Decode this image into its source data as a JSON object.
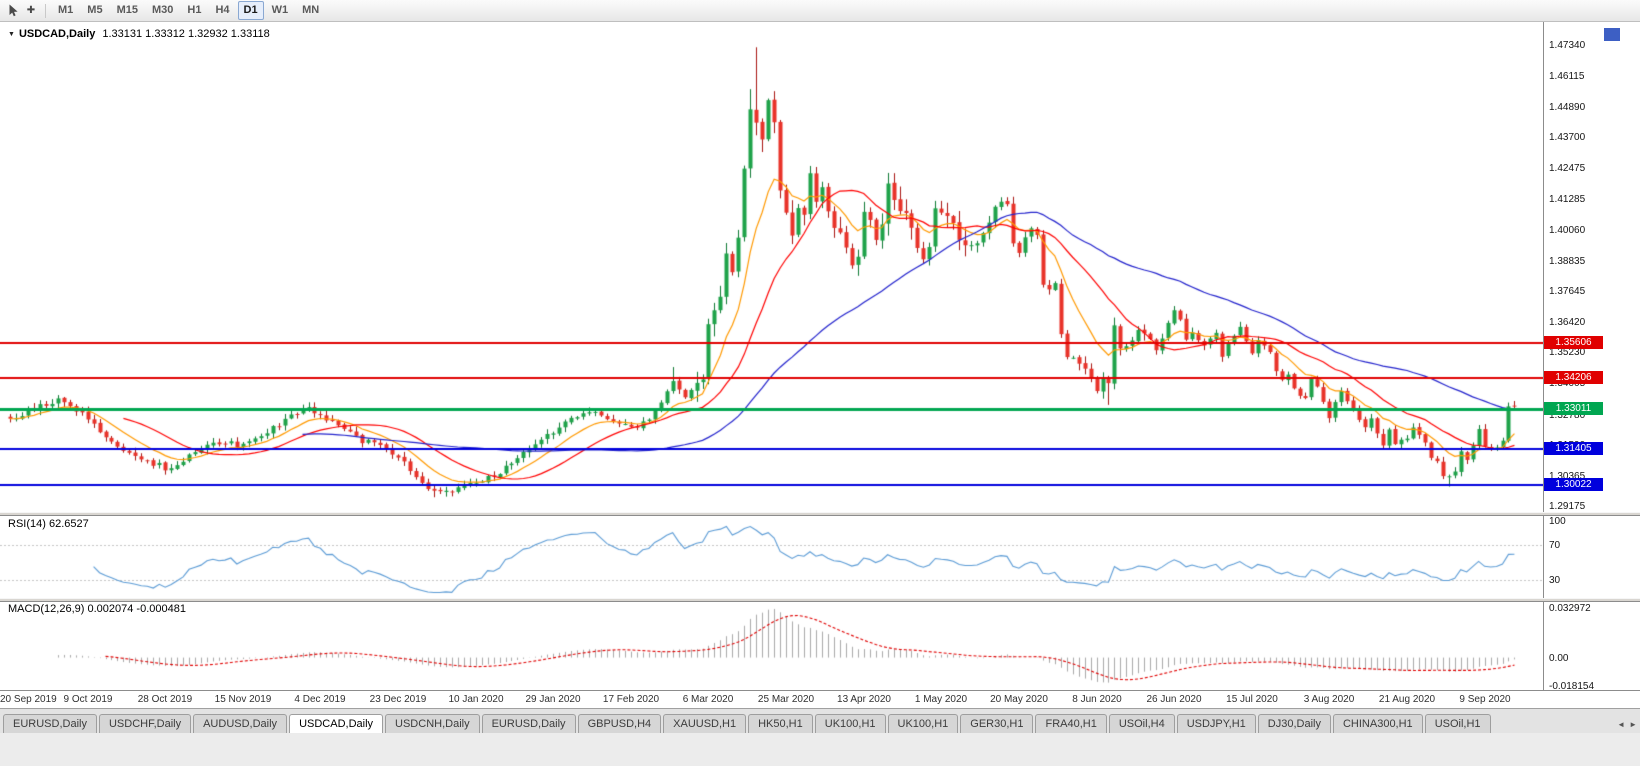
{
  "toolbar": {
    "crosshair_glyph": "✚",
    "timeframes": [
      "M1",
      "M5",
      "M15",
      "M30",
      "H1",
      "H4",
      "D1",
      "W1",
      "MN"
    ],
    "active_timeframe": "D1"
  },
  "chart": {
    "caret_glyph": "▼",
    "symbol_label": "USDCAD,Daily",
    "ohlc": "1.33131 1.33312 1.32932 1.33118"
  },
  "chart_data": {
    "type": "candlestick",
    "symbol": "USDCAD",
    "timeframe": "Daily",
    "num_candles": 253,
    "candles_per_label": 13,
    "x_labels": [
      "20 Sep 2019",
      "9 Oct 2019",
      "28 Oct 2019",
      "15 Nov 2019",
      "4 Dec 2019",
      "23 Dec 2019",
      "10 Jan 2020",
      "29 Jan 2020",
      "17 Feb 2020",
      "6 Mar 2020",
      "25 Mar 2020",
      "13 Apr 2020",
      "1 May 2020",
      "20 May 2020",
      "8 Jun 2020",
      "26 Jun 2020",
      "15 Jul 2020",
      "3 Aug 2020",
      "21 Aug 2020",
      "9 Sep 2020"
    ],
    "y_axis": {
      "min": 1.29175,
      "max": 1.4734,
      "labels": [
        "1.47340",
        "1.46115",
        "1.44890",
        "1.43700",
        "1.42475",
        "1.41285",
        "1.40060",
        "1.38835",
        "1.37645",
        "1.36420",
        "1.35230",
        "1.34005",
        "1.32780",
        "1.31590",
        "1.30365",
        "1.29175"
      ]
    },
    "close_waypoints": [
      [
        0,
        1.3265
      ],
      [
        4,
        1.33
      ],
      [
        8,
        1.334
      ],
      [
        11,
        1.33
      ],
      [
        14,
        1.324
      ],
      [
        17,
        1.317
      ],
      [
        20,
        1.313
      ],
      [
        23,
        1.3095
      ],
      [
        27,
        1.306
      ],
      [
        30,
        1.312
      ],
      [
        33,
        1.315
      ],
      [
        36,
        1.317
      ],
      [
        38,
        1.3155
      ],
      [
        41,
        1.319
      ],
      [
        44,
        1.3225
      ],
      [
        47,
        1.327
      ],
      [
        50,
        1.33
      ],
      [
        53,
        1.326
      ],
      [
        56,
        1.3215
      ],
      [
        59,
        1.3175
      ],
      [
        62,
        1.3155
      ],
      [
        64,
        1.313
      ],
      [
        66,
        1.309
      ],
      [
        68,
        1.304
      ],
      [
        70,
        1.299
      ],
      [
        72,
        1.2968
      ],
      [
        74,
        1.2978
      ],
      [
        77,
        1.3
      ],
      [
        80,
        1.303
      ],
      [
        82,
        1.305
      ],
      [
        85,
        1.31
      ],
      [
        87,
        1.314
      ],
      [
        89,
        1.318
      ],
      [
        91,
        1.321
      ],
      [
        94,
        1.3255
      ],
      [
        97,
        1.329
      ],
      [
        100,
        1.327
      ],
      [
        102,
        1.325
      ],
      [
        105,
        1.3225
      ],
      [
        107,
        1.3255
      ],
      [
        109,
        1.333
      ],
      [
        111,
        1.341
      ],
      [
        113,
        1.335
      ],
      [
        115,
        1.339
      ],
      [
        116,
        1.342
      ],
      [
        117,
        1.366
      ],
      [
        118,
        1.37
      ],
      [
        119,
        1.373
      ],
      [
        120,
        1.392
      ],
      [
        121,
        1.382
      ],
      [
        122,
        1.399
      ],
      [
        123,
        1.424
      ],
      [
        124,
        1.45
      ],
      [
        125,
        1.445
      ],
      [
        126,
        1.435
      ],
      [
        127,
        1.449
      ],
      [
        128,
        1.442
      ],
      [
        129,
        1.419
      ],
      [
        130,
        1.406
      ],
      [
        131,
        1.399
      ],
      [
        132,
        1.408
      ],
      [
        133,
        1.405
      ],
      [
        134,
        1.42
      ],
      [
        135,
        1.413
      ],
      [
        136,
        1.418
      ],
      [
        137,
        1.409
      ],
      [
        138,
        1.401
      ],
      [
        140,
        1.396
      ],
      [
        141,
        1.389
      ],
      [
        142,
        1.3895
      ],
      [
        143,
        1.409
      ],
      [
        144,
        1.404
      ],
      [
        145,
        1.399
      ],
      [
        146,
        1.402
      ],
      [
        147,
        1.417
      ],
      [
        148,
        1.414
      ],
      [
        149,
        1.406
      ],
      [
        150,
        1.408
      ],
      [
        151,
        1.401
      ],
      [
        152,
        1.396
      ],
      [
        153,
        1.389
      ],
      [
        154,
        1.394
      ],
      [
        155,
        1.408
      ],
      [
        157,
        1.403
      ],
      [
        159,
        1.398
      ],
      [
        161,
        1.393
      ],
      [
        163,
        1.398
      ],
      [
        165,
        1.409
      ],
      [
        167,
        1.411
      ],
      [
        168,
        1.395
      ],
      [
        169,
        1.393
      ],
      [
        171,
        1.4
      ],
      [
        172,
        1.398
      ],
      [
        173,
        1.379
      ],
      [
        175,
        1.378
      ],
      [
        176,
        1.358
      ],
      [
        177,
        1.352
      ],
      [
        179,
        1.348
      ],
      [
        181,
        1.342
      ],
      [
        182,
        1.338
      ],
      [
        183,
        1.342
      ],
      [
        184,
        1.341
      ],
      [
        185,
        1.362
      ],
      [
        186,
        1.354
      ],
      [
        187,
        1.355
      ],
      [
        189,
        1.36
      ],
      [
        191,
        1.358
      ],
      [
        192,
        1.353
      ],
      [
        194,
        1.364
      ],
      [
        195,
        1.368
      ],
      [
        196,
        1.365
      ],
      [
        197,
        1.358
      ],
      [
        198,
        1.36
      ],
      [
        200,
        1.355
      ],
      [
        202,
        1.361
      ],
      [
        203,
        1.351
      ],
      [
        205,
        1.359
      ],
      [
        206,
        1.362
      ],
      [
        208,
        1.351
      ],
      [
        209,
        1.357
      ],
      [
        211,
        1.353
      ],
      [
        212,
        1.345
      ],
      [
        213,
        1.341
      ],
      [
        214,
        1.343
      ],
      [
        215,
        1.337
      ],
      [
        217,
        1.334
      ],
      [
        218,
        1.342
      ],
      [
        219,
        1.339
      ],
      [
        221,
        1.327
      ],
      [
        223,
        1.338
      ],
      [
        224,
        1.334
      ],
      [
        226,
        1.325
      ],
      [
        227,
        1.322
      ],
      [
        228,
        1.326
      ],
      [
        229,
        1.321
      ],
      [
        230,
        1.316
      ],
      [
        231,
        1.322
      ],
      [
        232,
        1.317
      ],
      [
        234,
        1.318
      ],
      [
        235,
        1.322
      ],
      [
        237,
        1.316
      ],
      [
        238,
        1.31
      ],
      [
        239,
        1.309
      ],
      [
        240,
        1.304
      ],
      [
        241,
        1.3045
      ],
      [
        242,
        1.3055
      ],
      [
        243,
        1.313
      ],
      [
        244,
        1.3105
      ],
      [
        245,
        1.316
      ],
      [
        246,
        1.323
      ],
      [
        247,
        1.316
      ],
      [
        248,
        1.3145
      ],
      [
        249,
        1.315
      ],
      [
        250,
        1.3175
      ],
      [
        251,
        1.331
      ],
      [
        252,
        1.33118
      ]
    ],
    "forced_points": {
      "open": {
        "252": 1.33131
      },
      "close": {
        "250": 1.3175,
        "251": 1.331,
        "252": 1.33118
      },
      "high": {
        "111": 1.3465,
        "124": 1.456,
        "125": 1.4725,
        "147": 1.423,
        "185": 1.366,
        "252": 1.33312
      },
      "low": {
        "71": 1.2952,
        "184": 1.3316,
        "241": 1.2994,
        "252": 1.32932
      }
    },
    "candle_up_color": "#1fa34a",
    "candle_up_border": "#0e7a33",
    "candle_down_color": "#e8332a",
    "candle_down_border": "#a91510",
    "horizontal_lines": [
      {
        "value": 1.35606,
        "label": "1.35606",
        "color": "#e00000",
        "width": 2
      },
      {
        "value": 1.34206,
        "label": "1.34206",
        "color": "#e00000",
        "width": 2
      },
      {
        "value": 1.33011,
        "label": "1.33011",
        "color": "#00a651",
        "width": 3
      },
      {
        "value": 1.31405,
        "label": "1.31405",
        "color": "#0000dd",
        "width": 2
      },
      {
        "value": 1.30022,
        "label": "1.30022",
        "color": "#0000dd",
        "width": 2
      }
    ],
    "moving_averages": [
      {
        "type": "ema",
        "period": 10,
        "color": "#ff9900"
      },
      {
        "type": "sma",
        "period": 20,
        "color": "#ff0000"
      },
      {
        "type": "sma",
        "period": 50,
        "color": "#2222cc"
      }
    ],
    "rsi": {
      "label": "RSI(14) 62.6527",
      "period": 14,
      "current_value": "62.6527",
      "color": "#5b9bd5",
      "levels": [
        "100",
        "70",
        "30"
      ],
      "level_values": [
        100,
        70,
        30
      ]
    },
    "macd": {
      "label": "MACD(12,26,9) 0.002074 -0.000481",
      "fast": 12,
      "slow": 26,
      "signal_period": 9,
      "current_macd": "0.002074",
      "current_signal": "-0.000481",
      "hist_color": "#a8a8a8",
      "signal_color": "#e00000",
      "axis_labels": [
        "0.032972",
        "0.00",
        "-0.018154"
      ],
      "axis_values": [
        0.032972,
        0,
        -0.018154
      ]
    }
  },
  "tabs": {
    "active_index": 3,
    "scroll_buttons": [
      "◄",
      "►"
    ],
    "items": [
      {
        "label": "EURUSD,Daily"
      },
      {
        "label": "USDCHF,Daily"
      },
      {
        "label": "AUDUSD,Daily"
      },
      {
        "label": "USDCAD,Daily"
      },
      {
        "label": "USDCNH,Daily"
      },
      {
        "label": "EURUSD,Daily"
      },
      {
        "label": "GBPUSD,H4"
      },
      {
        "label": "XAUUSD,H1"
      },
      {
        "label": "HK50,H1"
      },
      {
        "label": "UK100,H1"
      },
      {
        "label": "UK100,H1"
      },
      {
        "label": "GER30,H1"
      },
      {
        "label": "FRA40,H1"
      },
      {
        "label": "USOil,H4"
      },
      {
        "label": "USDJPY,H1"
      },
      {
        "label": "DJ30,Daily"
      },
      {
        "label": "CHINA300,H1"
      },
      {
        "label": "USOil,H1"
      }
    ]
  }
}
